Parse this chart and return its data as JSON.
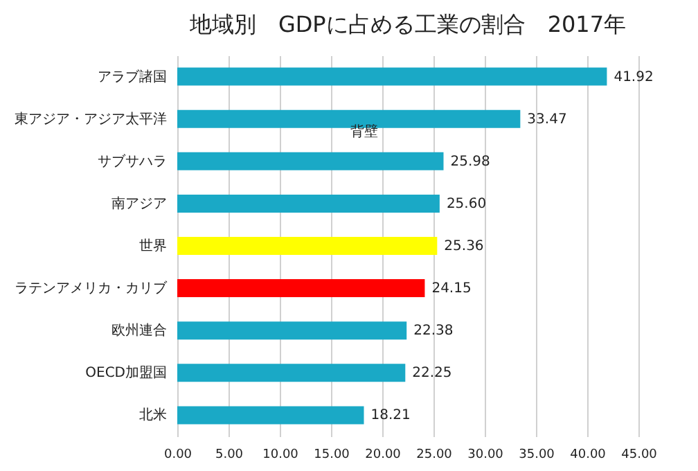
{
  "chart_data": {
    "type": "bar",
    "orientation": "horizontal",
    "title": "地域別　GDPに占める工業の割合　2017年",
    "categories": [
      "アラブ諸国",
      "東アジア・アジア太平洋",
      "サブサハラ",
      "南アジア",
      "世界",
      "ラテンアメリカ・カリブ",
      "欧州連合",
      "OECD加盟国",
      "北米"
    ],
    "values": [
      41.92,
      33.47,
      25.98,
      25.6,
      25.36,
      24.15,
      22.38,
      22.25,
      18.21
    ],
    "value_labels": [
      "41.92",
      "33.47",
      "25.98",
      "25.60",
      "25.36",
      "24.15",
      "22.38",
      "22.25",
      "18.21"
    ],
    "colors": [
      "#1aa9c6",
      "#1aa9c6",
      "#1aa9c6",
      "#1aa9c6",
      "#ffff00",
      "#ff0000",
      "#1aa9c6",
      "#1aa9c6",
      "#1aa9c6"
    ],
    "xlim": [
      0,
      45
    ],
    "xticks": [
      {
        "value": 0,
        "label": "0.00"
      },
      {
        "value": 5,
        "label": "5.00"
      },
      {
        "value": 10,
        "label": "10.00"
      },
      {
        "value": 15,
        "label": "15.00"
      },
      {
        "value": 20,
        "label": "20.00"
      },
      {
        "value": 25,
        "label": "25.00"
      },
      {
        "value": 30,
        "label": "30.00"
      },
      {
        "value": 35,
        "label": "35.00"
      },
      {
        "value": 40,
        "label": "40.00"
      },
      {
        "value": 45,
        "label": "45.00"
      }
    ],
    "grid": "x",
    "annotations": [
      "背壁"
    ]
  }
}
